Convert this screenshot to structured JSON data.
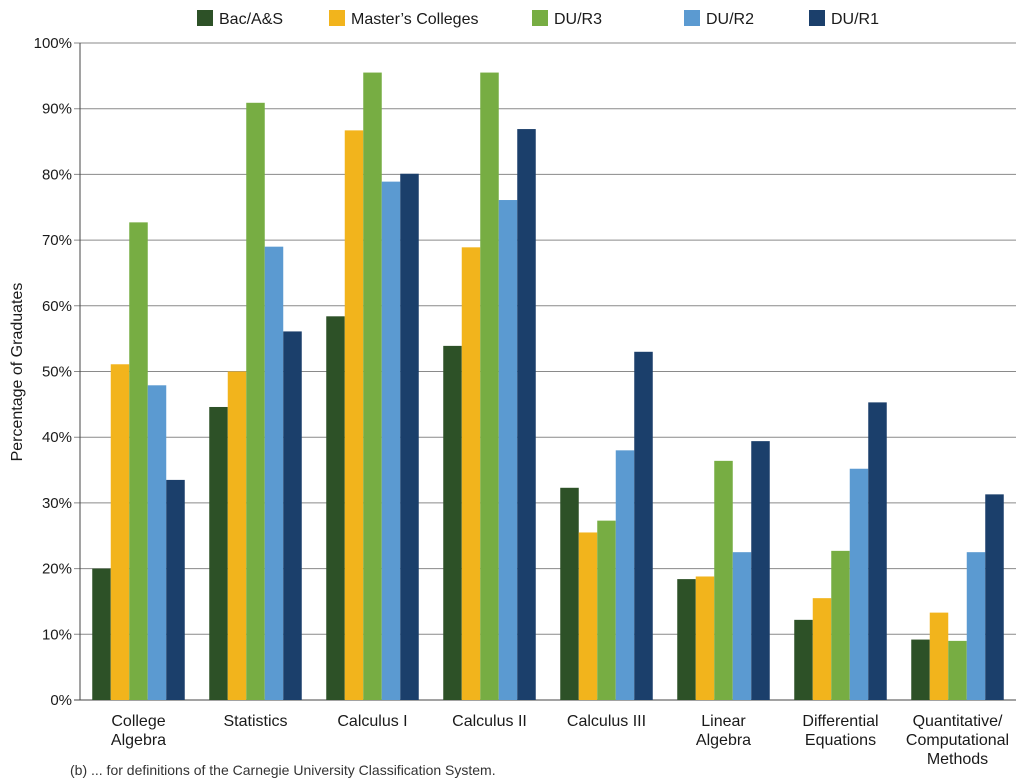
{
  "chart_data": {
    "type": "bar",
    "ylabel": "Percentage of Graduates",
    "ylim": [
      0,
      100
    ],
    "ytick_step": 10,
    "ytick_suffix": "%",
    "grid": "horizontal",
    "legend_placement": "top-center",
    "categories": [
      "College Algebra",
      "Statistics",
      "Calculus I",
      "Calculus II",
      "Calculus III",
      "Linear Algebra",
      "Differential Equations",
      "Quantitative/ Computational Methods"
    ],
    "category_lines": [
      [
        "College",
        "Algebra"
      ],
      [
        "Statistics"
      ],
      [
        "Calculus I"
      ],
      [
        "Calculus II"
      ],
      [
        "Calculus III"
      ],
      [
        "Linear",
        "Algebra"
      ],
      [
        "Differential",
        "Equations"
      ],
      [
        "Quantitative/",
        "Computational",
        "Methods"
      ]
    ],
    "series": [
      {
        "name": "Bac/A&S",
        "color": "#2d5127",
        "values": [
          20,
          44.6,
          58.4,
          53.9,
          32.3,
          18.4,
          12.2,
          9.2
        ]
      },
      {
        "name": "Master’s Colleges",
        "color": "#f2b41c",
        "values": [
          51.1,
          50.0,
          86.7,
          68.9,
          25.5,
          18.8,
          15.5,
          13.3
        ]
      },
      {
        "name": "DU/R3",
        "color": "#77ad43",
        "values": [
          72.7,
          90.9,
          95.5,
          95.5,
          27.3,
          36.4,
          22.7,
          9.0
        ]
      },
      {
        "name": "DU/R2",
        "color": "#5b9ad1",
        "values": [
          47.9,
          69.0,
          78.9,
          76.1,
          38.0,
          22.5,
          35.2,
          22.5
        ]
      },
      {
        "name": "DU/R1",
        "color": "#1b3f6b",
        "values": [
          33.5,
          56.1,
          80.1,
          86.9,
          53.0,
          39.4,
          45.3,
          31.3
        ]
      }
    ]
  },
  "footnote": "(b) ... for definitions of the Carnegie University Classification System."
}
